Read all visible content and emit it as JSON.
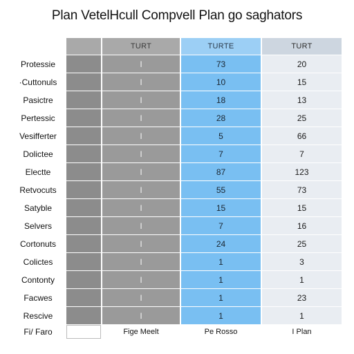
{
  "title": "Plan VetelHcull Compvell Plan go saghators",
  "headers": [
    "TURT",
    "TURTE",
    "TURT"
  ],
  "rows": [
    {
      "label": "Protessie",
      "mark": "I",
      "v1": "73",
      "v2": "20"
    },
    {
      "label": "·Cuttonuls",
      "mark": "I",
      "v1": "10",
      "v2": "15"
    },
    {
      "label": "Pasictre",
      "mark": "I",
      "v1": "18",
      "v2": "13"
    },
    {
      "label": "Pertessic",
      "mark": "I",
      "v1": "28",
      "v2": "25"
    },
    {
      "label": "Vesifferter",
      "mark": "I",
      "v1": "5",
      "v2": "66"
    },
    {
      "label": "Dolictee",
      "mark": "I",
      "v1": "7",
      "v2": "7"
    },
    {
      "label": "Electte",
      "mark": "I",
      "v1": "87",
      "v2": "123"
    },
    {
      "label": "Retvocuts",
      "mark": "I",
      "v1": "55",
      "v2": "73"
    },
    {
      "label": "Satyble",
      "mark": "I",
      "v1": "15",
      "v2": "15"
    },
    {
      "label": "Selvers",
      "mark": "I",
      "v1": "7",
      "v2": "16"
    },
    {
      "label": "Cortonuts",
      "mark": "I",
      "v1": "24",
      "v2": "25"
    },
    {
      "label": "Colictes",
      "mark": "I",
      "v1": "1",
      "v2": "3"
    },
    {
      "label": "Contonty",
      "mark": "I",
      "v1": "1",
      "v2": "1"
    },
    {
      "label": "Facwes",
      "mark": "I",
      "v1": "1",
      "v2": "23"
    },
    {
      "label": "Rescive",
      "mark": "I",
      "v1": "1",
      "v2": "1"
    }
  ],
  "footer": {
    "label": "Fi/ Faro",
    "c1": "",
    "c2": "Fige Meelt",
    "c3": "Pe Rosso",
    "c4": "I Plan"
  }
}
